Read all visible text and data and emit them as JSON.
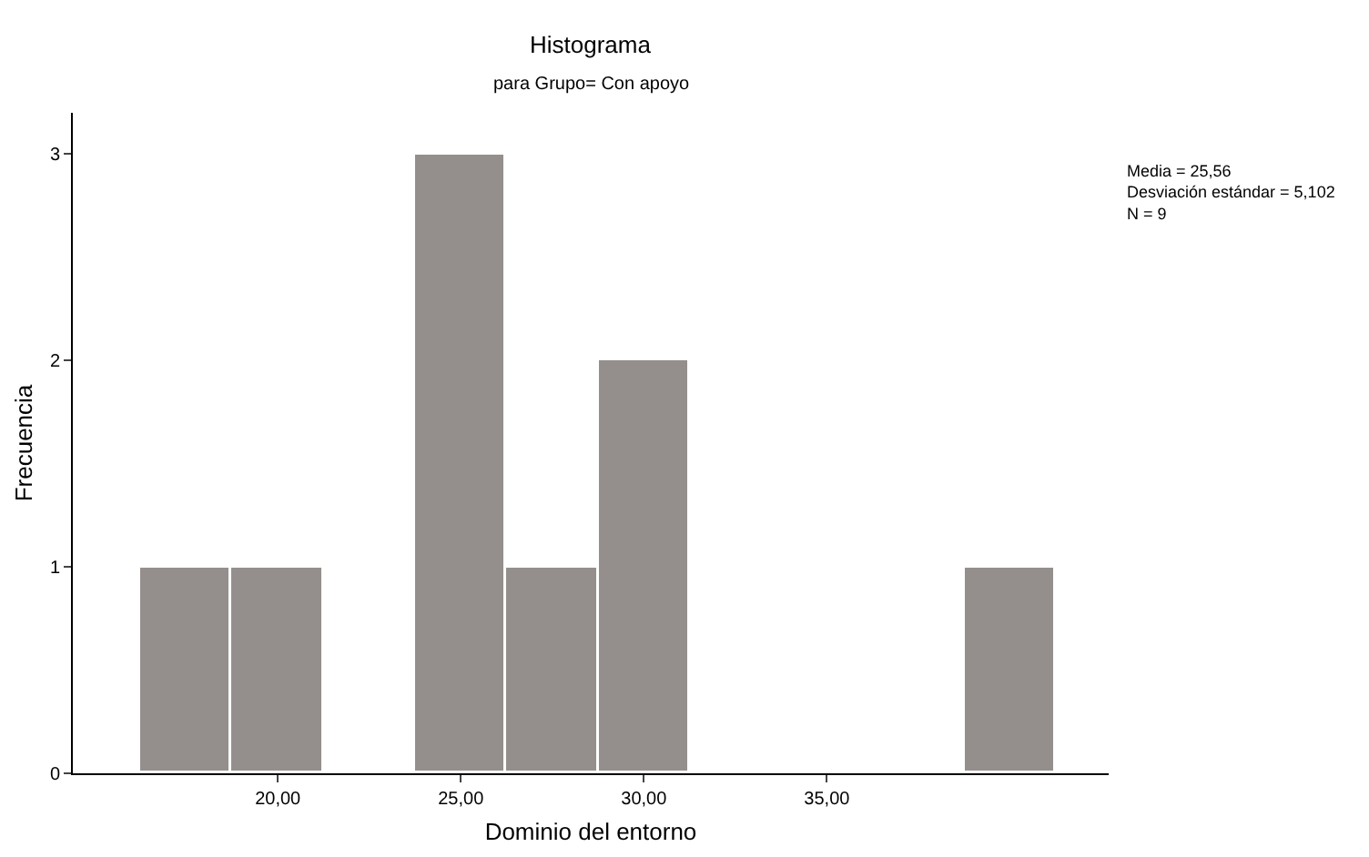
{
  "chart_data": {
    "type": "histogram",
    "title": "Histograma",
    "subtitle": "para Grupo= Con apoyo",
    "xlabel": "Dominio del entorno",
    "ylabel": "Frecuencia",
    "bins": [
      16.25,
      18.75,
      21.25,
      23.75,
      26.25,
      28.75,
      31.25,
      33.75,
      36.25,
      38.75,
      41.25
    ],
    "values": [
      1,
      1,
      0,
      3,
      1,
      2,
      0,
      0,
      0,
      1
    ],
    "color": "#948f8c",
    "xlim": [
      14.4,
      42.7
    ],
    "xticks": [
      {
        "value": 20,
        "label": "20,00"
      },
      {
        "value": 25,
        "label": "25,00"
      },
      {
        "value": 30,
        "label": "30,00"
      },
      {
        "value": 35,
        "label": "35,00"
      }
    ],
    "ylim": [
      0,
      3.2
    ],
    "yticks": [
      0,
      1,
      2,
      3
    ],
    "annotations": [
      "Media = 25,56",
      "Desviación estándar = 5,102",
      "N = 9"
    ],
    "grid": false,
    "legend": false
  }
}
